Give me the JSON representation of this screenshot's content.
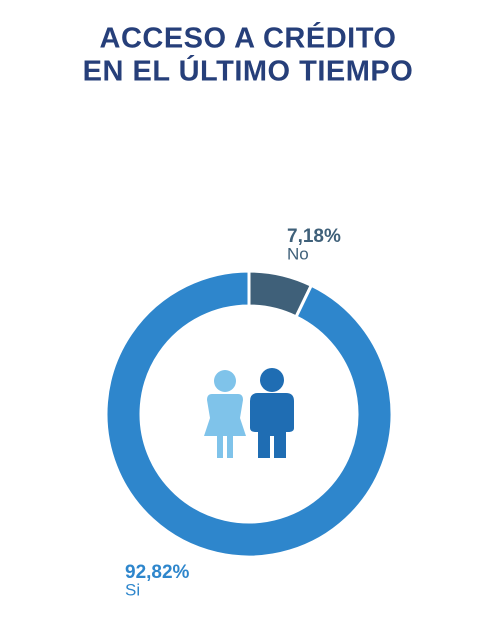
{
  "chart_data": {
    "type": "donut",
    "title": [
      "ACCESO A CRÉDITO",
      "EN EL ÚLTIMO TIEMPO"
    ],
    "categories": [
      "No",
      "Si"
    ],
    "values": [
      7.18,
      92.82
    ],
    "value_labels": [
      "7,18%",
      "92,82%"
    ],
    "colors": [
      "#3f6079",
      "#2e86cc"
    ]
  }
}
